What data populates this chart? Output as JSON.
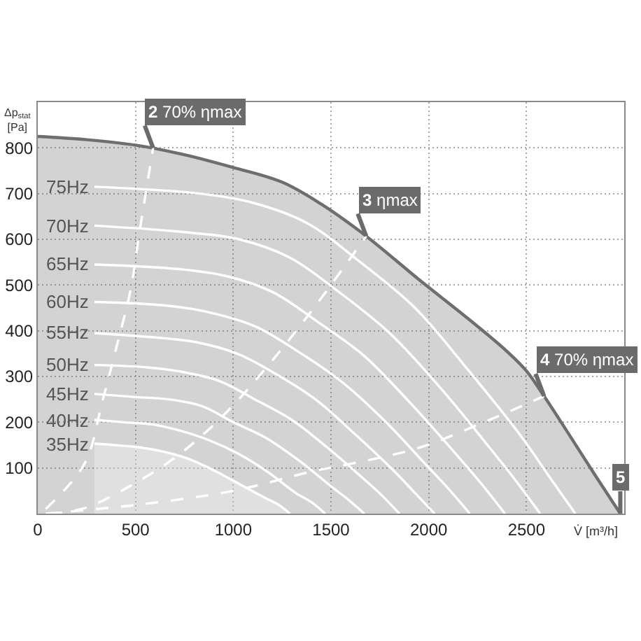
{
  "chart_data": {
    "type": "line",
    "xlabel": "V̇ [m³/h]",
    "ylabel": "Δp$_{stat}$\n[Pa]",
    "xlim": [
      0,
      3000
    ],
    "xticks": [
      0,
      500,
      1000,
      1500,
      2000,
      2500
    ],
    "ylim": [
      0,
      900
    ],
    "yticks": [
      100,
      200,
      300,
      400,
      500,
      600,
      700,
      800
    ],
    "grid": true,
    "legend": false,
    "marker": "none",
    "line_style": "solid",
    "series": [
      {
        "type": "area",
        "color": "#6e6e6e",
        "x": [
          0,
          250,
          500,
          750,
          1000,
          1250,
          1450,
          1680,
          1950,
          2200,
          2400,
          2500,
          2590,
          2700,
          2850,
          2980
        ],
        "values": [
          825,
          818,
          806,
          785,
          757,
          725,
          677,
          607,
          512,
          427,
          355,
          312,
          257,
          185,
          85,
          0
        ]
      },
      {
        "type": "area",
        "name": "35Hz",
        "color": "#ffffff",
        "x": [
          290,
          390,
          520,
          650,
          770,
          900,
          1030,
          1160,
          1230,
          1290
        ],
        "values": [
          153,
          150,
          145,
          135,
          120,
          95,
          65,
          35,
          20,
          0
        ]
      },
      {
        "name": "40Hz",
        "color": "#ffffff",
        "x": [
          290,
          440,
          590,
          740,
          880,
          1030,
          1180,
          1320,
          1400,
          1470
        ],
        "values": [
          205,
          200,
          195,
          180,
          160,
          130,
          90,
          45,
          25,
          0
        ]
      },
      {
        "name": "45Hz",
        "color": "#ffffff",
        "x": [
          290,
          500,
          670,
          840,
          1000,
          1170,
          1340,
          1500,
          1590,
          1670
        ],
        "values": [
          262,
          255,
          250,
          235,
          200,
          165,
          115,
          60,
          30,
          0
        ]
      },
      {
        "name": "50Hz",
        "color": "#ffffff",
        "x": [
          290,
          560,
          740,
          930,
          1110,
          1300,
          1480,
          1670,
          1760,
          1850
        ],
        "values": [
          325,
          320,
          310,
          290,
          250,
          205,
          145,
          75,
          40,
          0
        ]
      },
      {
        "name": "55Hz",
        "color": "#ffffff",
        "x": [
          290,
          610,
          810,
          1020,
          1220,
          1420,
          1620,
          1830,
          1930,
          2030
        ],
        "values": [
          395,
          385,
          375,
          350,
          305,
          250,
          175,
          90,
          45,
          0
        ]
      },
      {
        "name": "60Hz",
        "color": "#ffffff",
        "x": [
          290,
          660,
          880,
          1110,
          1330,
          1550,
          1770,
          1990,
          2100,
          2210
        ],
        "values": [
          463,
          455,
          440,
          410,
          355,
          290,
          205,
          105,
          55,
          0
        ]
      },
      {
        "name": "65Hz",
        "color": "#ffffff",
        "x": [
          290,
          720,
          960,
          1200,
          1430,
          1670,
          1910,
          2150,
          2270,
          2390
        ],
        "values": [
          545,
          535,
          520,
          485,
          420,
          345,
          240,
          125,
          65,
          0
        ]
      },
      {
        "name": "70Hz",
        "color": "#ffffff",
        "x": [
          290,
          770,
          1030,
          1290,
          1540,
          1800,
          2060,
          2310,
          2440,
          2570
        ],
        "values": [
          630,
          615,
          600,
          560,
          485,
          395,
          275,
          145,
          75,
          0
        ]
      },
      {
        "name": "75Hz",
        "color": "#ffffff",
        "x": [
          290,
          830,
          1100,
          1380,
          1650,
          1930,
          2200,
          2480,
          2610,
          2750
        ],
        "values": [
          715,
          700,
          680,
          635,
          550,
          450,
          315,
          165,
          85,
          0
        ]
      },
      {
        "line_style": "dashed",
        "color": "#ffffff",
        "x": [
          40,
          240,
          330,
          400,
          475,
          520,
          590
        ],
        "values": [
          10,
          110,
          245,
          360,
          490,
          615,
          800
        ]
      },
      {
        "line_style": "dashed",
        "color": "#ffffff",
        "x": [
          60,
          240,
          470,
          710,
          950,
          1190,
          1430,
          1680
        ],
        "values": [
          0,
          12,
          60,
          125,
          215,
          330,
          460,
          607
        ]
      },
      {
        "line_style": "dashed",
        "color": "#ffffff",
        "x": [
          40,
          520,
          1000,
          1400,
          1590,
          1950,
          2310,
          2590
        ],
        "values": [
          0,
          20,
          50,
          92,
          108,
          144,
          205,
          257
        ]
      }
    ],
    "annotations": [
      {
        "text": "2 70% ηmax",
        "x": 590,
        "y": 800
      },
      {
        "text": "3 ηmax",
        "x": 1680,
        "y": 607
      },
      {
        "text": "4 70% ηmax",
        "x": 2590,
        "y": 257
      },
      {
        "text": "5",
        "x": 2980,
        "y": 0
      }
    ]
  }
}
